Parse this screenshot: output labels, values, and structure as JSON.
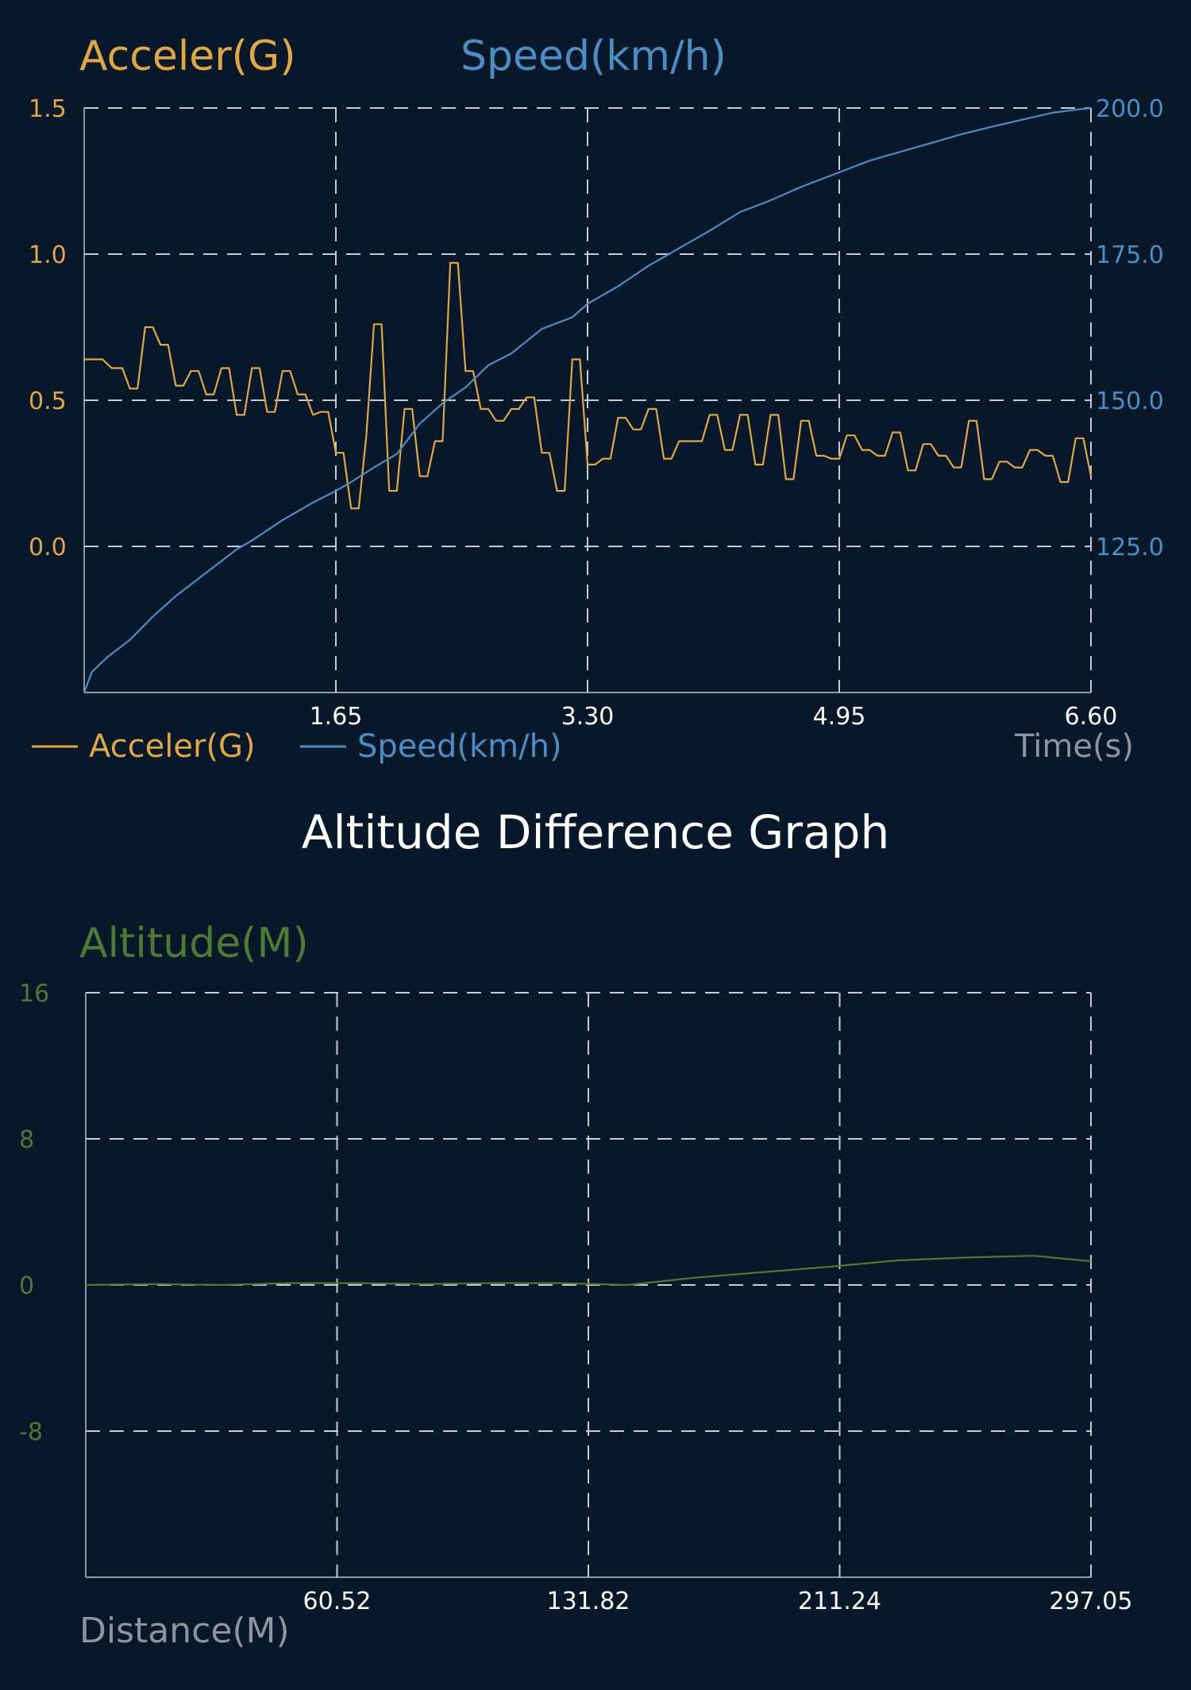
{
  "colors": {
    "background": "#07182a",
    "accel": "#e2a740",
    "speed": "#4b8ec4",
    "altitude": "#4f7a33",
    "grid": "#c7ccd3",
    "frame": "#8d96a1",
    "axis_label": "#8f959c",
    "white": "#ffffff"
  },
  "section_title": "Altitude Difference Graph",
  "chart_data": [
    {
      "type": "line",
      "title": "",
      "left_axis_title": "Acceler(G)",
      "right_axis_title": "Speed(km/h)",
      "xlabel": "Time(s)",
      "xlim": [
        0,
        6.6
      ],
      "x_ticks": [
        "1.65",
        "3.30",
        "4.95",
        "6.60"
      ],
      "x_tick_values": [
        1.65,
        3.3,
        4.95,
        6.6
      ],
      "left_ylim": [
        -0.5,
        1.5
      ],
      "left_ticks": [
        "1.5",
        "1.0",
        "0.5",
        "0.0"
      ],
      "left_tick_values": [
        1.5,
        1.0,
        0.5,
        0.0
      ],
      "right_ylim": [
        100,
        200
      ],
      "right_ticks": [
        "200.0",
        "175.0",
        "150.0",
        "125.0"
      ],
      "right_tick_values": [
        200,
        175,
        150,
        125
      ],
      "grid": true,
      "legend": {
        "placement": "bottom-left",
        "entries": [
          "Acceler(G)",
          "Speed(km/h)"
        ]
      },
      "series": [
        {
          "name": "Acceler(G)",
          "axis": "left",
          "x": [
            0.0,
            0.12,
            0.18,
            0.25,
            0.3,
            0.35,
            0.4,
            0.45,
            0.5,
            0.55,
            0.6,
            0.65,
            0.7,
            0.75,
            0.8,
            0.85,
            0.9,
            0.95,
            1.0,
            1.05,
            1.1,
            1.15,
            1.2,
            1.25,
            1.3,
            1.35,
            1.4,
            1.45,
            1.5,
            1.55,
            1.6,
            1.65,
            1.7,
            1.75,
            1.8,
            1.85,
            1.9,
            1.95,
            2.0,
            2.05,
            2.1,
            2.15,
            2.2,
            2.25,
            2.3,
            2.35,
            2.4,
            2.45,
            2.5,
            2.55,
            2.6,
            2.65,
            2.7,
            2.75,
            2.8,
            2.85,
            2.9,
            2.95,
            3.0,
            3.05,
            3.1,
            3.15,
            3.2,
            3.25,
            3.3,
            3.35,
            3.4,
            3.45,
            3.5,
            3.55,
            3.6,
            3.65,
            3.7,
            3.75,
            3.8,
            3.85,
            3.9,
            3.95,
            4.0,
            4.05,
            4.1,
            4.15,
            4.2,
            4.25,
            4.3,
            4.35,
            4.4,
            4.45,
            4.5,
            4.55,
            4.6,
            4.65,
            4.7,
            4.75,
            4.8,
            4.85,
            4.9,
            4.95,
            5.0,
            5.05,
            5.1,
            5.15,
            5.2,
            5.25,
            5.3,
            5.35,
            5.4,
            5.45,
            5.5,
            5.55,
            5.6,
            5.65,
            5.7,
            5.75,
            5.8,
            5.85,
            5.9,
            5.95,
            6.0,
            6.05,
            6.1,
            6.15,
            6.2,
            6.25,
            6.3,
            6.35,
            6.4,
            6.45,
            6.5,
            6.55,
            6.6
          ],
          "values": [
            0.64,
            0.64,
            0.61,
            0.61,
            0.54,
            0.54,
            0.75,
            0.75,
            0.69,
            0.69,
            0.55,
            0.55,
            0.6,
            0.6,
            0.52,
            0.52,
            0.61,
            0.61,
            0.45,
            0.45,
            0.61,
            0.61,
            0.46,
            0.46,
            0.6,
            0.6,
            0.52,
            0.52,
            0.45,
            0.46,
            0.46,
            0.32,
            0.32,
            0.13,
            0.13,
            0.38,
            0.76,
            0.76,
            0.19,
            0.19,
            0.47,
            0.47,
            0.24,
            0.24,
            0.36,
            0.36,
            0.97,
            0.97,
            0.6,
            0.6,
            0.47,
            0.47,
            0.43,
            0.43,
            0.47,
            0.47,
            0.51,
            0.51,
            0.32,
            0.32,
            0.19,
            0.19,
            0.64,
            0.64,
            0.28,
            0.28,
            0.3,
            0.3,
            0.44,
            0.44,
            0.4,
            0.4,
            0.47,
            0.47,
            0.3,
            0.3,
            0.36,
            0.36,
            0.36,
            0.36,
            0.45,
            0.45,
            0.33,
            0.33,
            0.45,
            0.45,
            0.28,
            0.28,
            0.45,
            0.45,
            0.23,
            0.23,
            0.43,
            0.43,
            0.31,
            0.31,
            0.3,
            0.3,
            0.38,
            0.38,
            0.33,
            0.33,
            0.31,
            0.31,
            0.39,
            0.39,
            0.26,
            0.26,
            0.35,
            0.35,
            0.31,
            0.31,
            0.27,
            0.27,
            0.43,
            0.43,
            0.23,
            0.23,
            0.29,
            0.29,
            0.27,
            0.27,
            0.33,
            0.33,
            0.31,
            0.31,
            0.22,
            0.22,
            0.37,
            0.37,
            0.24
          ]
        },
        {
          "name": "Speed(km/h)",
          "axis": "right",
          "x": [
            0.0,
            0.05,
            0.15,
            0.3,
            0.45,
            0.6,
            0.8,
            1.0,
            1.1,
            1.3,
            1.5,
            1.65,
            1.75,
            1.9,
            2.05,
            2.2,
            2.35,
            2.5,
            2.65,
            2.8,
            3.0,
            3.2,
            3.3,
            3.5,
            3.7,
            3.9,
            4.1,
            4.3,
            4.5,
            4.7,
            4.95,
            5.15,
            5.35,
            5.55,
            5.75,
            5.95,
            6.15,
            6.35,
            6.5,
            6.6
          ],
          "values": [
            100.0,
            103.5,
            106.0,
            109.0,
            113.0,
            116.5,
            120.5,
            124.5,
            126.0,
            129.5,
            132.5,
            134.5,
            136.0,
            138.5,
            140.8,
            146.0,
            149.5,
            152.2,
            156.0,
            158.0,
            162.2,
            164.2,
            166.5,
            169.5,
            173.0,
            176.0,
            179.0,
            182.2,
            184.2,
            186.5,
            189.0,
            191.0,
            192.5,
            194.0,
            195.5,
            196.8,
            198.0,
            199.2,
            199.7,
            200.0
          ]
        }
      ]
    },
    {
      "type": "line",
      "title": "",
      "y_axis_title": "Altitude(M)",
      "xlabel": "Distance(M)",
      "xlim": [
        0,
        297.05
      ],
      "x_ticks": [
        "60.52",
        "131.82",
        "211.24",
        "297.05"
      ],
      "x_tick_positions": [
        0.25,
        0.5,
        0.75,
        1.0
      ],
      "ylim": [
        -16,
        16
      ],
      "y_ticks": [
        "16",
        "8",
        "0",
        "-8"
      ],
      "y_tick_values": [
        16,
        8,
        0,
        -8
      ],
      "grid": true,
      "series": [
        {
          "name": "Altitude(M)",
          "x": [
            0,
            20,
            40,
            60,
            80,
            100,
            120,
            140,
            160,
            180,
            200,
            220,
            240,
            260,
            280,
            297.05
          ],
          "values": [
            0,
            0.05,
            0,
            0.1,
            0.1,
            0.05,
            0.1,
            0.1,
            0,
            0.4,
            0.7,
            1.0,
            1.35,
            1.5,
            1.6,
            1.3
          ]
        }
      ]
    }
  ]
}
